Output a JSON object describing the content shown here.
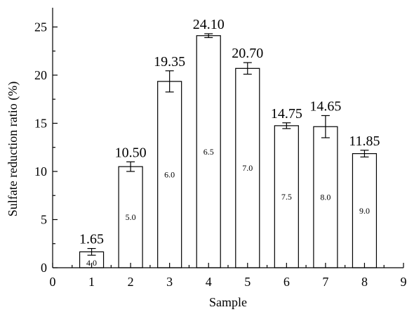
{
  "chart_data": {
    "type": "bar",
    "xlabel": "Sample",
    "ylabel": "Sulfate reduction ratio (%)",
    "xlim": [
      0,
      9
    ],
    "ylim": [
      0,
      27
    ],
    "x_ticks": [
      0,
      1,
      2,
      3,
      4,
      5,
      6,
      7,
      8,
      9
    ],
    "y_ticks": [
      0,
      5,
      10,
      15,
      20,
      25
    ],
    "grid": false,
    "legend": "none",
    "series": [
      {
        "x": [
          1,
          2,
          3,
          4,
          5,
          6,
          7,
          8
        ],
        "values": [
          1.65,
          10.5,
          19.35,
          24.1,
          20.7,
          14.75,
          14.65,
          11.85
        ],
        "value_labels": [
          "1.65",
          "10.50",
          "19.35",
          "24.10",
          "20.70",
          "14.75",
          "14.65",
          "11.85"
        ],
        "error": [
          0.35,
          0.5,
          1.1,
          0.2,
          0.6,
          0.3,
          1.15,
          0.35
        ],
        "inner_labels": [
          "4.0",
          "5.0",
          "6.0",
          "6.5",
          "7.0",
          "7.5",
          "8.0",
          "9.0"
        ]
      }
    ],
    "colors": {
      "bar_fill": "#ffffff",
      "bar_stroke": "#000000",
      "axis": "#000000"
    }
  }
}
